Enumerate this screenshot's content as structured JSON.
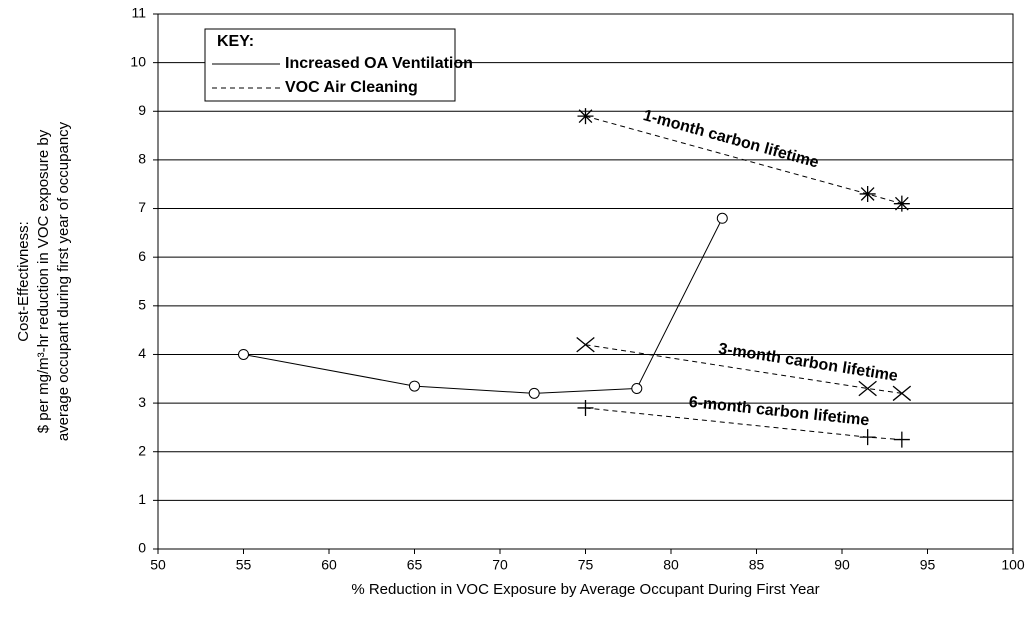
{
  "chart_data": {
    "type": "line",
    "xlabel": "% Reduction in VOC Exposure by Average Occupant During First Year",
    "ylabel": [
      "Cost-Effectivness:",
      "$ per mg/m³-hr reduction in VOC exposure by",
      "average occupant during first year of occupancy"
    ],
    "xlim": [
      50,
      100
    ],
    "xticks": [
      50,
      55,
      60,
      65,
      70,
      75,
      80,
      85,
      90,
      95,
      100
    ],
    "ylim": [
      0,
      11
    ],
    "yticks": [
      0,
      1,
      2,
      3,
      4,
      5,
      6,
      7,
      8,
      9,
      10,
      11
    ],
    "grid": true,
    "legend": {
      "title": "KEY:",
      "position": "upper left",
      "entries": [
        {
          "label": "Increased OA Ventilation",
          "dash": "solid"
        },
        {
          "label": "VOC Air Cleaning",
          "dash": "dashed"
        }
      ]
    },
    "series": [
      {
        "name": "Increased OA Ventilation",
        "color": "#000000",
        "dash": "solid",
        "marker": "circle",
        "x": [
          55,
          65,
          72,
          78,
          83
        ],
        "values": [
          4.0,
          3.35,
          3.2,
          3.3,
          6.8
        ]
      },
      {
        "name": "1-month carbon lifetime",
        "color": "#000000",
        "dash": "dashed",
        "marker": "asterisk",
        "x": [
          75,
          91.5,
          93.5
        ],
        "values": [
          8.9,
          7.3,
          7.1
        ]
      },
      {
        "name": "3-month carbon lifetime",
        "color": "#000000",
        "dash": "dashed",
        "marker": "x",
        "x": [
          75,
          91.5,
          93.5
        ],
        "values": [
          4.2,
          3.3,
          3.2
        ]
      },
      {
        "name": "6-month carbon lifetime",
        "color": "#000000",
        "dash": "dashed",
        "marker": "plus",
        "x": [
          75,
          91.5,
          93.5
        ],
        "values": [
          2.9,
          2.3,
          2.25
        ]
      }
    ]
  }
}
